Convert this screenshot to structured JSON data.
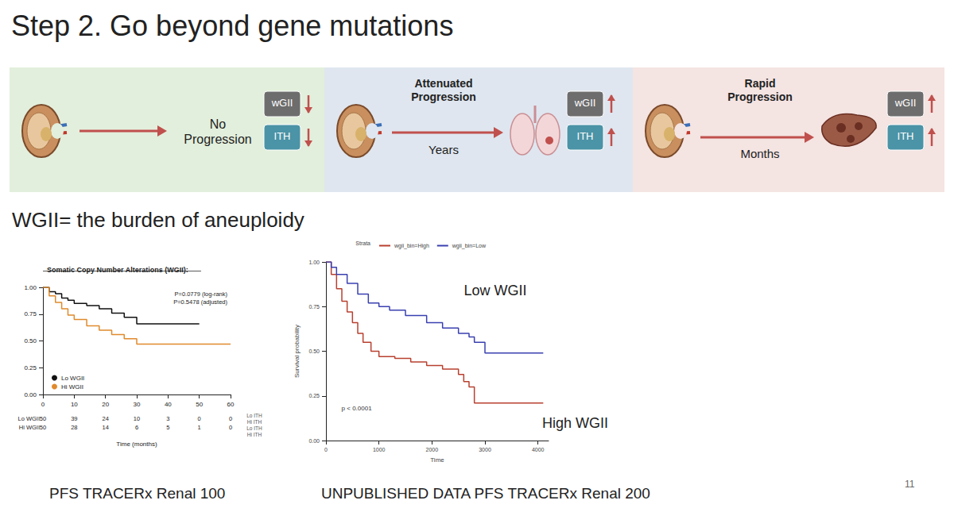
{
  "title": "Step 2. Go beyond gene mutations",
  "diagram": {
    "panels": [
      {
        "color": "#e2efdc",
        "label": "No Progression",
        "markers": [
          {
            "name": "wGII",
            "color": "#6d6d6d",
            "direction": "down"
          },
          {
            "name": "ITH",
            "color": "#4b93a6",
            "direction": "down"
          }
        ]
      },
      {
        "color": "#dfe6ef",
        "label": "Attenuated Progression",
        "time": "Years",
        "markers": [
          {
            "name": "wGII",
            "color": "#6d6d6d",
            "direction": "up"
          },
          {
            "name": "ITH",
            "color": "#4b93a6",
            "direction": "up"
          }
        ]
      },
      {
        "color": "#f4e4e2",
        "label": "Rapid Progression",
        "time": "Months",
        "markers": [
          {
            "name": "wGII",
            "color": "#6d6d6d",
            "direction": "up"
          },
          {
            "name": "ITH",
            "color": "#4b93a6",
            "direction": "up"
          }
        ]
      }
    ]
  },
  "subtitle": "WGII= the burden of aneuploidy",
  "chart_data": [
    {
      "type": "line",
      "title": "Somatic Copy Number Alterations (WGII):",
      "annotations": [
        "P=0.0779 (log-rank)",
        "P=0.5478 (adjusted)"
      ],
      "xlabel": "Time (months)",
      "xlim": [
        0,
        60
      ],
      "xticks": [
        0,
        10,
        20,
        30,
        40,
        50,
        60
      ],
      "ylim": [
        0,
        1
      ],
      "yticks": [
        {
          "value": 0,
          "label": "0.00"
        },
        {
          "value": 0.25,
          "label": "0.25"
        },
        {
          "value": 0.5,
          "label": "0.50"
        },
        {
          "value": 0.75,
          "label": "0.75"
        },
        {
          "value": 1,
          "label": "1.00"
        }
      ],
      "grid": false,
      "legend": "lower left",
      "line_style": "step",
      "series": [
        {
          "name": "Lo WGII",
          "color": "#111111",
          "x": [
            0,
            2,
            4,
            6,
            8,
            10,
            14,
            18,
            22,
            26,
            30,
            50
          ],
          "values": [
            1,
            0.96,
            0.94,
            0.9,
            0.88,
            0.85,
            0.83,
            0.8,
            0.76,
            0.72,
            0.66,
            0.66
          ]
        },
        {
          "name": "Hi WGII",
          "color": "#e08a2c",
          "x": [
            0,
            2,
            4,
            6,
            8,
            10,
            14,
            18,
            22,
            26,
            30,
            60
          ],
          "values": [
            1,
            0.92,
            0.86,
            0.8,
            0.74,
            0.7,
            0.64,
            0.6,
            0.56,
            0.52,
            0.47,
            0.47
          ]
        }
      ],
      "risk_table": {
        "x": [
          0,
          10,
          20,
          30,
          40,
          50,
          60
        ],
        "rows": [
          {
            "name": "Lo WGII",
            "values": [
              50,
              39,
              24,
              10,
              3,
              0,
              0
            ]
          },
          {
            "name": "Hi WGII",
            "values": [
              50,
              28,
              14,
              6,
              5,
              1,
              0
            ]
          }
        ]
      },
      "strata_labels": [
        "Lo ITH",
        "Hi ITH",
        "Lo ITH",
        "Hi ITH"
      ]
    },
    {
      "type": "line",
      "legend_title": "Strata",
      "xlabel": "Time",
      "ylabel": "Survival probability",
      "annotations": [
        "p < 0.0001"
      ],
      "xlim": [
        0,
        4200
      ],
      "xticks": [
        0,
        1000,
        2000,
        3000,
        4000
      ],
      "ylim": [
        0,
        1
      ],
      "yticks": [
        {
          "value": 0,
          "label": "0.00"
        },
        {
          "value": 0.25,
          "label": "0.25"
        },
        {
          "value": 0.5,
          "label": "0.50"
        },
        {
          "value": 0.75,
          "label": "0.75"
        },
        {
          "value": 1,
          "label": "1.00"
        }
      ],
      "grid": false,
      "legend": "top",
      "line_style": "step",
      "series": [
        {
          "name": "wgii_bin=High",
          "label": "High WGII",
          "color": "#b8402f",
          "x": [
            0,
            100,
            200,
            300,
            400,
            500,
            600,
            700,
            850,
            1000,
            1300,
            1600,
            1900,
            2200,
            2500,
            2600,
            2700,
            2800,
            4100
          ],
          "values": [
            1,
            0.93,
            0.85,
            0.78,
            0.72,
            0.66,
            0.6,
            0.55,
            0.5,
            0.47,
            0.46,
            0.44,
            0.42,
            0.4,
            0.37,
            0.33,
            0.3,
            0.21,
            0.21
          ]
        },
        {
          "name": "wgii_bin=Low",
          "label": "Low WGII",
          "color": "#3a40b0",
          "x": [
            0,
            100,
            200,
            400,
            600,
            800,
            1000,
            1200,
            1500,
            1900,
            2200,
            2500,
            2700,
            2800,
            3000,
            4100
          ],
          "values": [
            1,
            0.97,
            0.93,
            0.88,
            0.82,
            0.77,
            0.75,
            0.73,
            0.7,
            0.66,
            0.63,
            0.6,
            0.58,
            0.55,
            0.49,
            0.49
          ]
        }
      ]
    }
  ],
  "captions": [
    "PFS TRACERx Renal 100",
    "UNPUBLISHED DATA PFS TRACERx Renal 200"
  ],
  "page": "11"
}
